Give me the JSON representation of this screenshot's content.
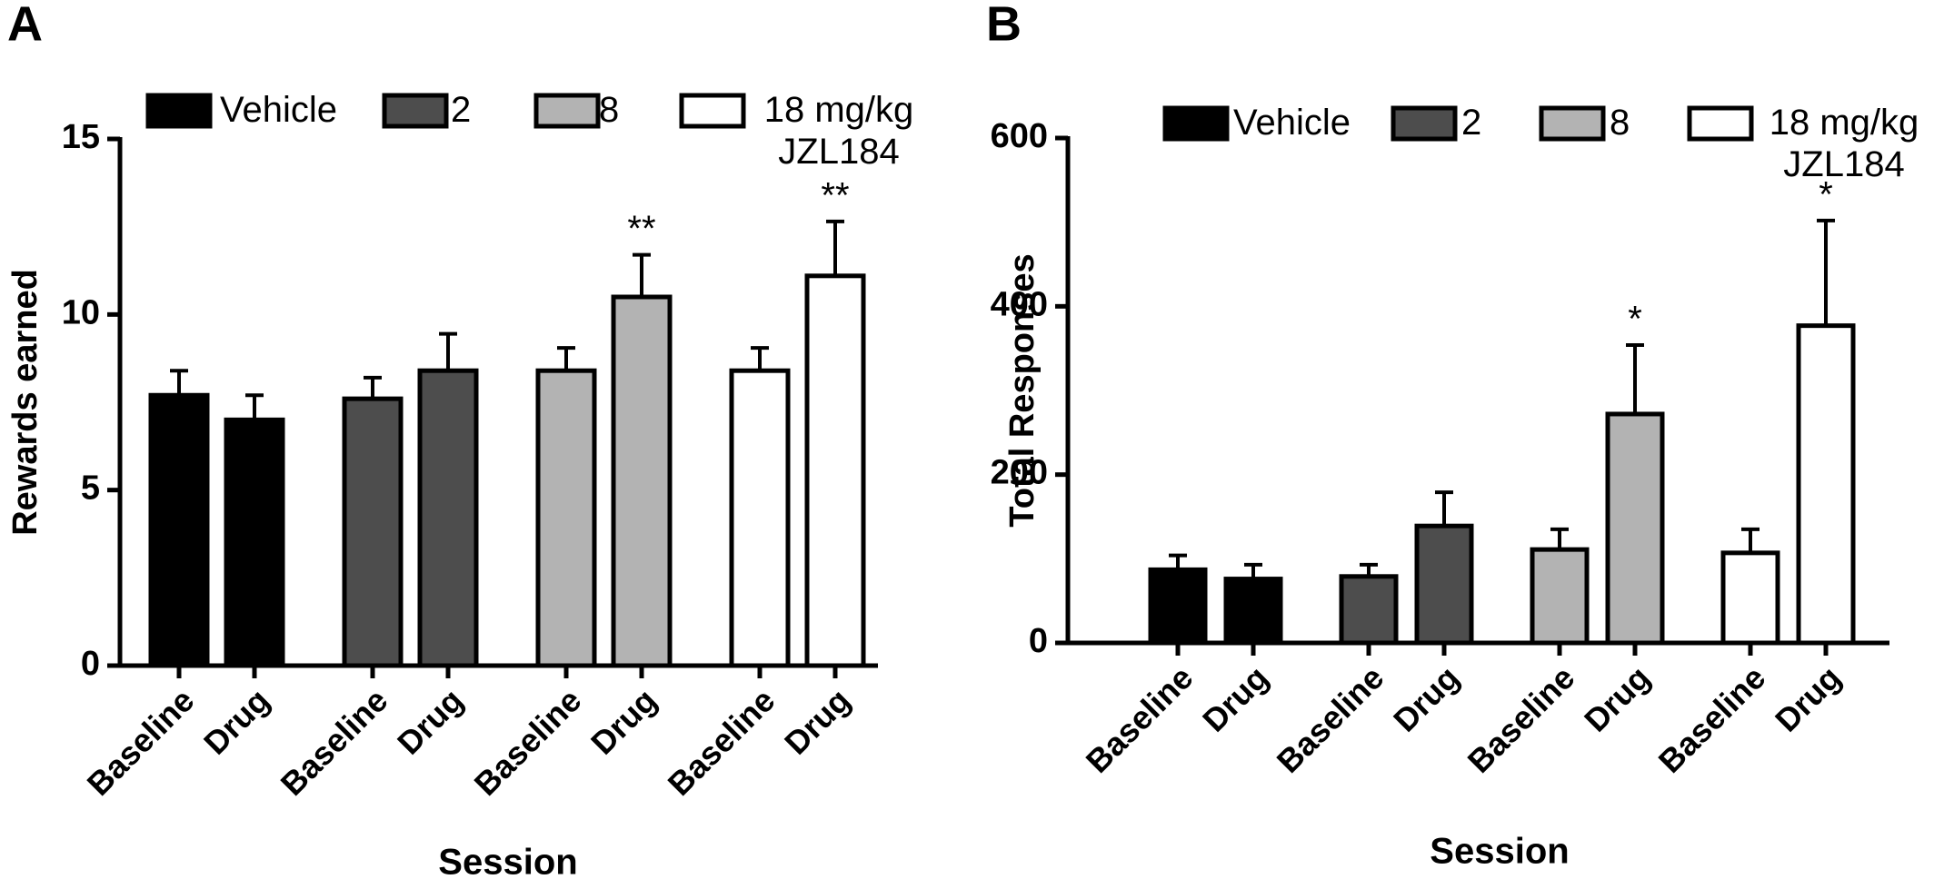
{
  "chart_data": [
    {
      "type": "bar",
      "panel": "A",
      "ylabel": "Rewards earned",
      "xlabel": "Session",
      "categories": [
        "Baseline",
        "Drug"
      ],
      "ylim": [
        0,
        15
      ],
      "yticks": [
        0,
        5,
        10,
        15
      ],
      "series": [
        {
          "name": "Vehicle",
          "color": "#000000",
          "values": [
            7.7,
            7.0
          ],
          "errors": [
            0.7,
            0.7
          ],
          "annotations": [
            null,
            null
          ]
        },
        {
          "name": "2",
          "color": "#4d4d4d",
          "values": [
            7.6,
            8.4
          ],
          "errors": [
            0.6,
            1.05
          ],
          "annotations": [
            null,
            null
          ]
        },
        {
          "name": "8",
          "color": "#b3b3b3",
          "values": [
            8.4,
            10.5
          ],
          "errors": [
            0.65,
            1.2
          ],
          "annotations": [
            null,
            "**"
          ]
        },
        {
          "name": "18 mg/kg JZL184",
          "color": "#ffffff",
          "values": [
            8.4,
            11.1
          ],
          "errors": [
            0.65,
            1.55
          ],
          "annotations": [
            null,
            "**"
          ]
        }
      ]
    },
    {
      "type": "bar",
      "panel": "B",
      "ylabel": "Total Responses",
      "xlabel": "Session",
      "categories": [
        "Baseline",
        "Drug"
      ],
      "ylim": [
        0,
        600
      ],
      "yticks": [
        0,
        200,
        400,
        600
      ],
      "series": [
        {
          "name": "Vehicle",
          "color": "#000000",
          "values": [
            87,
            76
          ],
          "errors": [
            17,
            17
          ],
          "annotations": [
            null,
            null
          ]
        },
        {
          "name": "2",
          "color": "#4d4d4d",
          "values": [
            79,
            139
          ],
          "errors": [
            14,
            40
          ],
          "annotations": [
            null,
            null
          ]
        },
        {
          "name": "8",
          "color": "#b3b3b3",
          "values": [
            111,
            272
          ],
          "errors": [
            24,
            82
          ],
          "annotations": [
            null,
            "*"
          ]
        },
        {
          "name": "18 mg/kg JZL184",
          "color": "#ffffff",
          "values": [
            107,
            377
          ],
          "errors": [
            28,
            125
          ],
          "annotations": [
            null,
            "*"
          ]
        }
      ]
    }
  ]
}
